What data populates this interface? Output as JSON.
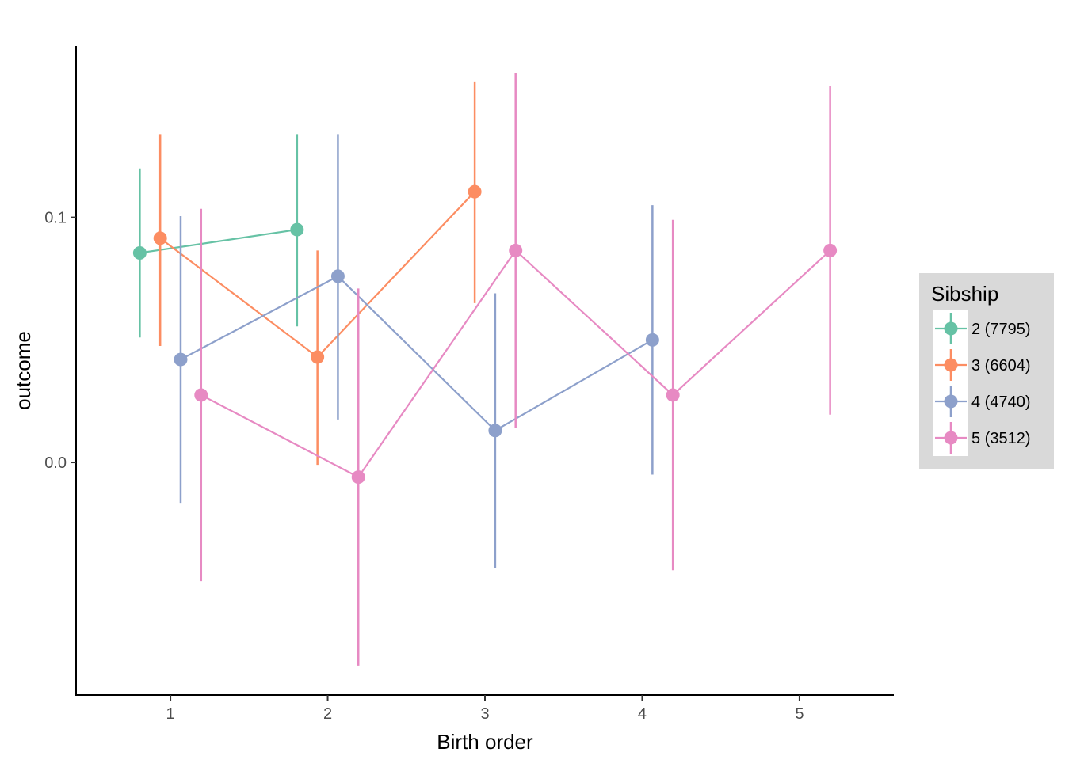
{
  "chart_data": {
    "type": "scatter",
    "title": "",
    "xlabel": "Birth order",
    "ylabel": "outcome",
    "xlim": [
      0.4,
      5.6
    ],
    "ylim": [
      -0.095,
      0.17
    ],
    "x_ticks": [
      1,
      2,
      3,
      4,
      5
    ],
    "x_tick_labels": [
      "1",
      "2",
      "3",
      "4",
      "5"
    ],
    "y_ticks": [
      0.0,
      0.1
    ],
    "y_tick_labels": [
      "0.0",
      "0.1"
    ],
    "grid": false,
    "legend": {
      "title": "Sibship",
      "position": "right"
    },
    "series": [
      {
        "name": "2 (7795)",
        "color": "#66c2a5",
        "dodge": -0.195,
        "points": [
          {
            "x": 1,
            "y": 0.0855,
            "ymin": 0.051,
            "ymax": 0.12
          },
          {
            "x": 2,
            "y": 0.095,
            "ymin": 0.0555,
            "ymax": 0.134
          }
        ]
      },
      {
        "name": "3 (6604)",
        "color": "#fc8d62",
        "dodge": -0.065,
        "points": [
          {
            "x": 1,
            "y": 0.0915,
            "ymin": 0.0475,
            "ymax": 0.134
          },
          {
            "x": 2,
            "y": 0.043,
            "ymin": -0.001,
            "ymax": 0.0865
          },
          {
            "x": 3,
            "y": 0.1105,
            "ymin": 0.065,
            "ymax": 0.1555
          }
        ]
      },
      {
        "name": "4 (4740)",
        "color": "#8da0cb",
        "dodge": 0.065,
        "points": [
          {
            "x": 1,
            "y": 0.042,
            "ymin": -0.0165,
            "ymax": 0.1005
          },
          {
            "x": 2,
            "y": 0.076,
            "ymin": 0.0175,
            "ymax": 0.134
          },
          {
            "x": 3,
            "y": 0.013,
            "ymin": -0.043,
            "ymax": 0.069
          },
          {
            "x": 4,
            "y": 0.05,
            "ymin": -0.005,
            "ymax": 0.105
          }
        ]
      },
      {
        "name": "5 (3512)",
        "color": "#e78ac3",
        "dodge": 0.195,
        "points": [
          {
            "x": 1,
            "y": 0.0275,
            "ymin": -0.0485,
            "ymax": 0.1035
          },
          {
            "x": 2,
            "y": -0.006,
            "ymin": -0.083,
            "ymax": 0.071
          },
          {
            "x": 3,
            "y": 0.0865,
            "ymin": 0.014,
            "ymax": 0.159
          },
          {
            "x": 4,
            "y": 0.0275,
            "ymin": -0.044,
            "ymax": 0.099
          },
          {
            "x": 5,
            "y": 0.0865,
            "ymin": 0.0195,
            "ymax": 0.1535
          }
        ]
      }
    ]
  }
}
